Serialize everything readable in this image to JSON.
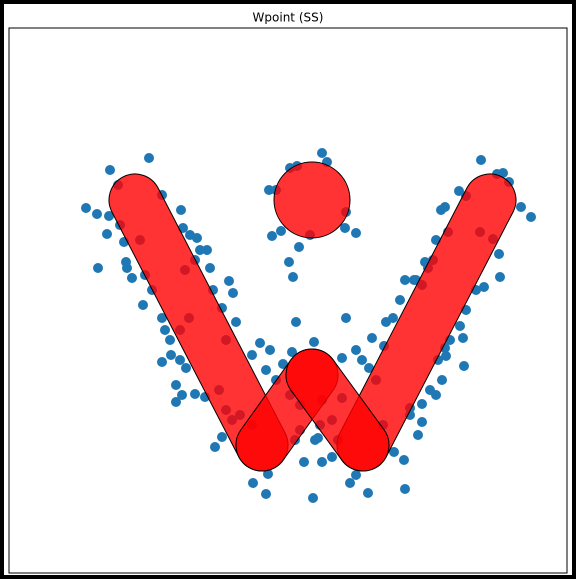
{
  "chart_data": {
    "type": "scatter",
    "title": "Wpoint (SS)",
    "color": "#1f77b4",
    "xlim": [
      9,
      567
    ],
    "ylim": [
      573,
      28
    ],
    "x": [
      110,
      149,
      118,
      86,
      97,
      109,
      107,
      124,
      98,
      127,
      126,
      140,
      145,
      143,
      152,
      162,
      181,
      183,
      190,
      197,
      195,
      207,
      210,
      213,
      229,
      233,
      222,
      236,
      226,
      162,
      165,
      170,
      180,
      189,
      162,
      180,
      186,
      176,
      182,
      176,
      195,
      205,
      219,
      226,
      240,
      222,
      215,
      232,
      252,
      200,
      185,
      171,
      120,
      132,
      322,
      327,
      290,
      297,
      269,
      276,
      272,
      281,
      299,
      289,
      293,
      345,
      356,
      346,
      310,
      296,
      346,
      314,
      260,
      252,
      270,
      292,
      283,
      266,
      276,
      356,
      342,
      372,
      386,
      384,
      362,
      369,
      376,
      290,
      300,
      322,
      342,
      320,
      332,
      300,
      315,
      318,
      304,
      322,
      295,
      338,
      332,
      253,
      268,
      266,
      313,
      350,
      368,
      356,
      405,
      404,
      394,
      418,
      422,
      410,
      383,
      481,
      497,
      503,
      509,
      521,
      531,
      459,
      466,
      441,
      445,
      448,
      436,
      433,
      428,
      422,
      414,
      405,
      400,
      393,
      480,
      493,
      499,
      500,
      484,
      476,
      466,
      460,
      463,
      450,
      445,
      438,
      446,
      464,
      442,
      430,
      436,
      422,
      410,
      416,
      425
    ],
    "y": [
      170,
      158,
      185,
      208,
      214,
      216,
      234,
      242,
      268,
      268,
      262,
      240,
      275,
      305,
      290,
      195,
      210,
      228,
      235,
      238,
      260,
      250,
      268,
      290,
      281,
      293,
      308,
      322,
      340,
      318,
      330,
      340,
      330,
      318,
      362,
      360,
      368,
      385,
      395,
      402,
      394,
      397,
      390,
      410,
      415,
      437,
      447,
      420,
      425,
      250,
      270,
      355,
      225,
      278,
      153,
      162,
      168,
      166,
      190,
      190,
      236,
      231,
      247,
      262,
      277,
      228,
      233,
      212,
      235,
      322,
      318,
      342,
      343,
      355,
      350,
      352,
      364,
      370,
      380,
      350,
      358,
      338,
      322,
      346,
      360,
      368,
      380,
      395,
      405,
      400,
      398,
      425,
      420,
      430,
      440,
      438,
      462,
      462,
      440,
      440,
      457,
      483,
      474,
      494,
      498,
      483,
      493,
      475,
      489,
      460,
      452,
      435,
      422,
      415,
      425,
      160,
      174,
      173,
      182,
      207,
      217,
      191,
      196,
      210,
      207,
      232,
      240,
      260,
      268,
      285,
      280,
      280,
      300,
      318,
      232,
      239,
      254,
      277,
      287,
      290,
      310,
      326,
      338,
      340,
      348,
      360,
      356,
      366,
      380,
      390,
      395,
      404,
      408,
      280,
      262
    ],
    "shapes": [
      {
        "type": "capsule",
        "x": [
          135,
          262
        ],
        "y": [
          200,
          445
        ],
        "radius": 26
      },
      {
        "type": "capsule",
        "x": [
          490,
          363
        ],
        "y": [
          200,
          445
        ],
        "radius": 26
      },
      {
        "type": "capsule",
        "x": [
          262,
          312
        ],
        "y": [
          445,
          375
        ],
        "radius": 26
      },
      {
        "type": "capsule",
        "x": [
          312,
          363
        ],
        "y": [
          375,
          445
        ],
        "radius": 26
      },
      {
        "type": "circle",
        "x": [
          312
        ],
        "y": [
          200
        ],
        "radius": 38
      }
    ],
    "shape_color": "#ff0000"
  }
}
